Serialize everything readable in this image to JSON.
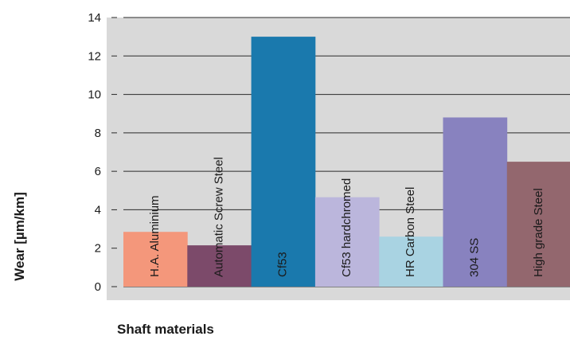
{
  "chart_data": {
    "type": "bar",
    "title": "",
    "xlabel": "Shaft materials",
    "ylabel": "Wear [µm/km]",
    "ylim": [
      0,
      14
    ],
    "yticks": [
      0,
      2,
      4,
      6,
      8,
      10,
      12,
      14
    ],
    "grid": true,
    "categories": [
      "H.A. Aluminium",
      "Automatic Screw Steel",
      "Cf53",
      "Cf53 hardchromed",
      "HR Carbon Steel",
      "304 SS",
      "High grade Steel"
    ],
    "values": [
      2.85,
      2.15,
      13.0,
      4.65,
      2.6,
      8.8,
      6.5
    ],
    "colors": [
      "#f4977b",
      "#7c4a6a",
      "#1a79ad",
      "#bbb6dc",
      "#a9d3e2",
      "#8882bf",
      "#93676e"
    ],
    "background_color": "#d9d9d9"
  }
}
